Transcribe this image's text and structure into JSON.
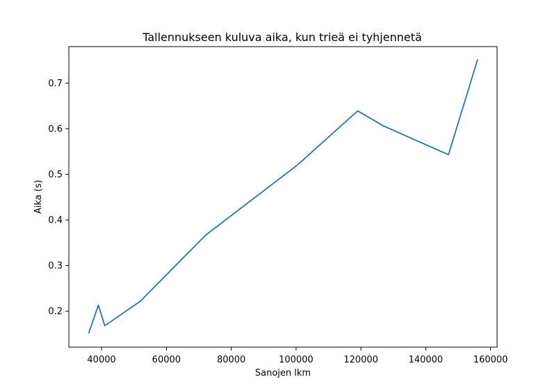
{
  "chart_data": {
    "type": "line",
    "title": "Tallennukseen kuluva aika, kun trieä ei tyhjennetä",
    "xlabel": "Sanojen lkm",
    "ylabel": "Aika (s)",
    "xlim": [
      29900,
      162000
    ],
    "ylim": [
      0.121,
      0.78
    ],
    "x_ticks": [
      40000,
      60000,
      80000,
      100000,
      120000,
      140000,
      160000
    ],
    "x_tick_labels": [
      "40000",
      "60000",
      "80000",
      "100000",
      "120000",
      "140000",
      "160000"
    ],
    "y_ticks": [
      0.2,
      0.3,
      0.4,
      0.5,
      0.6,
      0.7
    ],
    "y_tick_labels": [
      "0.2",
      "0.3",
      "0.4",
      "0.5",
      "0.6",
      "0.7"
    ],
    "grid": false,
    "series": [
      {
        "color": "#1f77b4",
        "x": [
          36000,
          39000,
          41000,
          52000,
          72000,
          100500,
          119000,
          127000,
          147000,
          156000
        ],
        "y": [
          0.151,
          0.213,
          0.168,
          0.222,
          0.366,
          0.521,
          0.639,
          0.606,
          0.543,
          0.752
        ]
      }
    ]
  }
}
